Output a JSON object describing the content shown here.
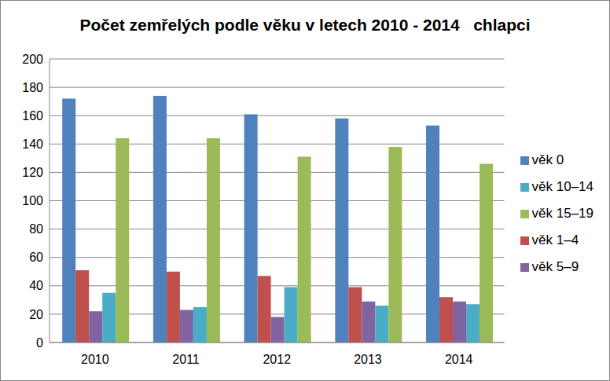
{
  "chart_data": {
    "type": "bar",
    "title": "Počet zemřelých podle věku v letech 2010 - 2014   chlapci",
    "categories": [
      "2010",
      "2011",
      "2012",
      "2013",
      "2014"
    ],
    "series": [
      {
        "name": "věk 0",
        "color": "#4f81bd",
        "values": [
          172,
          174,
          161,
          158,
          153
        ]
      },
      {
        "name": "věk 1–4",
        "color": "#c0504d",
        "values": [
          51,
          50,
          47,
          39,
          32
        ]
      },
      {
        "name": "věk 5–9",
        "color": "#8064a2",
        "values": [
          22,
          23,
          18,
          29,
          29
        ]
      },
      {
        "name": "věk 10–14",
        "color": "#4bacc6",
        "values": [
          35,
          25,
          39,
          26,
          27
        ]
      },
      {
        "name": "věk 15–19",
        "color": "#9bbb59",
        "values": [
          144,
          144,
          131,
          138,
          126
        ]
      }
    ],
    "ylim": [
      0,
      200
    ],
    "yticks": [
      0,
      20,
      40,
      60,
      80,
      100,
      120,
      140,
      160,
      180,
      200
    ],
    "grid": true,
    "legend": "right"
  }
}
